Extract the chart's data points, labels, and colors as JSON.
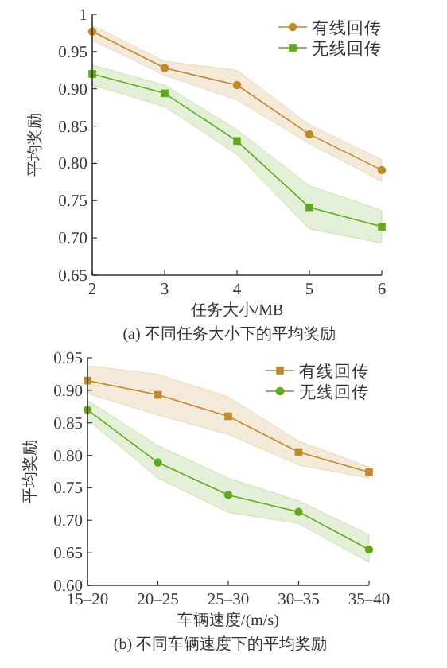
{
  "chart_data": [
    {
      "type": "line",
      "title": "(a) 不同任务大小下的平均奖励",
      "xlabel": "任务大小/MB",
      "ylabel": "平均奖励",
      "x": [
        2,
        3,
        4,
        5,
        6
      ],
      "xlim": [
        2,
        6
      ],
      "xticks": [
        2,
        3,
        4,
        5,
        6
      ],
      "ylim": [
        0.65,
        1
      ],
      "yticks": [
        {
          "value": 0.65,
          "label": "0.65"
        },
        {
          "value": 0.7,
          "label": "0.70"
        },
        {
          "value": 0.75,
          "label": "0.75"
        },
        {
          "value": 0.8,
          "label": "0.80"
        },
        {
          "value": 0.85,
          "label": "0.85"
        },
        {
          "value": 0.9,
          "label": "0.90"
        },
        {
          "value": 0.95,
          "label": "0.95"
        },
        1
      ],
      "legend": "top right",
      "grid": false,
      "series": [
        {
          "name": "有线回传",
          "color": "#c08a2c",
          "marker": "circle",
          "values": [
            0.977,
            0.928,
            0.905,
            0.839,
            0.791
          ],
          "upper": [
            0.985,
            0.937,
            0.925,
            0.852,
            0.805
          ],
          "lower": [
            0.965,
            0.918,
            0.885,
            0.826,
            0.776
          ]
        },
        {
          "name": "无线回传",
          "color": "#62a81e",
          "marker": "square",
          "values": [
            0.92,
            0.894,
            0.83,
            0.741,
            0.715
          ],
          "upper": [
            0.932,
            0.905,
            0.845,
            0.77,
            0.737
          ],
          "lower": [
            0.905,
            0.876,
            0.812,
            0.712,
            0.693
          ]
        }
      ]
    },
    {
      "type": "line",
      "title": "(b) 不同车辆速度下的平均奖励",
      "xlabel": "车辆速度/(m/s)",
      "ylabel": "平均奖励",
      "categories": [
        "15–20",
        "20–25",
        "25–30",
        "30–35",
        "35–40"
      ],
      "ylim": [
        0.6,
        0.95
      ],
      "yticks": [
        {
          "value": 0.6,
          "label": "0.60"
        },
        0.65,
        {
          "value": 0.7,
          "label": "0.70"
        },
        0.75,
        {
          "value": 0.8,
          "label": "0.80"
        },
        0.85,
        {
          "value": 0.9,
          "label": "0.90"
        },
        0.95
      ],
      "legend": "top right",
      "grid": false,
      "series": [
        {
          "name": "有线回传",
          "color": "#c08a2c",
          "marker": "square",
          "values": [
            0.915,
            0.893,
            0.86,
            0.805,
            0.774
          ],
          "upper": [
            0.938,
            0.925,
            0.89,
            0.822,
            0.782
          ],
          "lower": [
            0.895,
            0.862,
            0.832,
            0.785,
            0.765
          ]
        },
        {
          "name": "无线回传",
          "color": "#62a81e",
          "marker": "circle",
          "values": [
            0.87,
            0.789,
            0.739,
            0.713,
            0.655
          ],
          "upper": [
            0.885,
            0.815,
            0.765,
            0.73,
            0.678
          ],
          "lower": [
            0.855,
            0.765,
            0.712,
            0.695,
            0.635
          ]
        }
      ]
    }
  ]
}
